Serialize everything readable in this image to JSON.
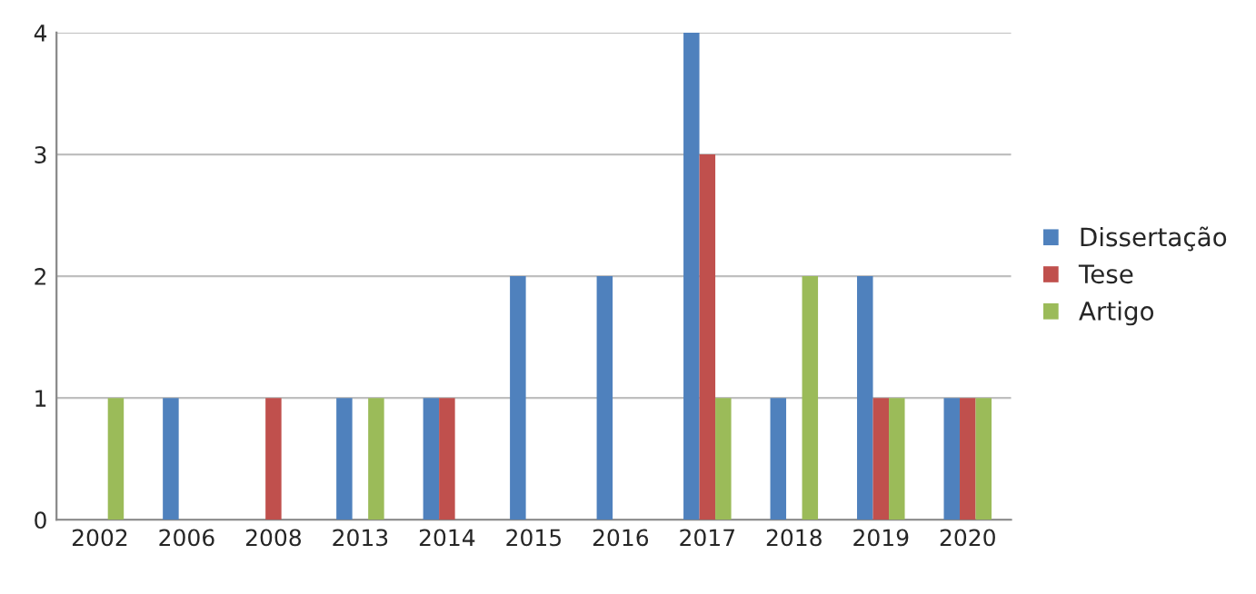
{
  "chart_data": {
    "type": "bar",
    "categories": [
      "2002",
      "2006",
      "2008",
      "2013",
      "2014",
      "2015",
      "2016",
      "2017",
      "2018",
      "2019",
      "2020"
    ],
    "series": [
      {
        "name": "Dissertação",
        "color": "#4f81bd",
        "values": [
          0,
          1,
          0,
          1,
          1,
          2,
          2,
          4,
          1,
          2,
          1
        ]
      },
      {
        "name": "Tese",
        "color": "#c0504d",
        "values": [
          0,
          0,
          1,
          0,
          1,
          0,
          0,
          3,
          0,
          1,
          1
        ]
      },
      {
        "name": "Artigo",
        "color": "#9bbb59",
        "values": [
          1,
          0,
          0,
          1,
          0,
          0,
          0,
          1,
          2,
          1,
          1
        ]
      }
    ],
    "ylim": [
      0,
      4
    ],
    "yticks": [
      0,
      1,
      2,
      3,
      4
    ],
    "grid": "y",
    "legend": "right"
  }
}
